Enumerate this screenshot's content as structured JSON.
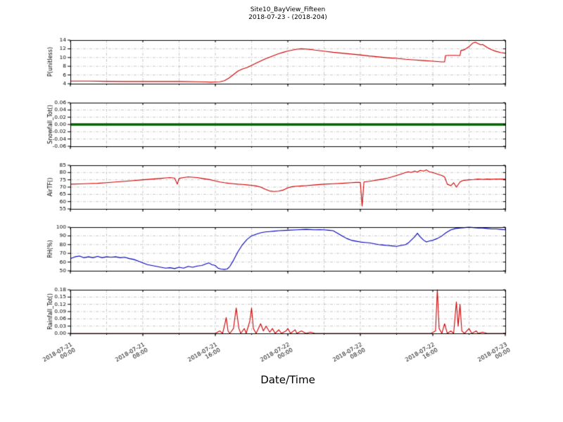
{
  "figure": {
    "title_line1": "Site10_BayView_Fifteen",
    "title_line2": "2018-07-23 - (2018-204)",
    "xlabel": "Date/Time",
    "background": "#ffffff",
    "grid_color": "#b0b0b0"
  },
  "x_axis": {
    "xlim": [
      0,
      48
    ],
    "minor_grid_hours": 4,
    "major_ticks": [
      0,
      8,
      16,
      24,
      32,
      40,
      48
    ],
    "tick_labels": [
      {
        "date": "2018-07-21",
        "time": "00:00"
      },
      {
        "date": "2018-07-21",
        "time": "08:00"
      },
      {
        "date": "2018-07-21",
        "time": "16:00"
      },
      {
        "date": "2018-07-22",
        "time": "00:00"
      },
      {
        "date": "2018-07-22",
        "time": "08:00"
      },
      {
        "date": "2018-07-22",
        "time": "16:00"
      },
      {
        "date": "2018-07-23",
        "time": "00:00"
      }
    ]
  },
  "chart_data": [
    {
      "type": "line",
      "title": "",
      "ylabel": "P(unitless)",
      "ylim": [
        4,
        14
      ],
      "yticks": [
        4,
        6,
        8,
        10,
        12,
        14
      ],
      "ytick_labels": [
        "4",
        "6",
        "8",
        "10",
        "12",
        "14"
      ],
      "color": "#cc0000",
      "line_width": 1.1,
      "grid": true,
      "points": [
        [
          0,
          4.6
        ],
        [
          2,
          4.6
        ],
        [
          4,
          4.55
        ],
        [
          6,
          4.5
        ],
        [
          8,
          4.5
        ],
        [
          10,
          4.5
        ],
        [
          12,
          4.5
        ],
        [
          14,
          4.45
        ],
        [
          15,
          4.4
        ],
        [
          15.5,
          4.35
        ],
        [
          16,
          4.4
        ],
        [
          16.5,
          4.45
        ],
        [
          17,
          4.7
        ],
        [
          17.5,
          5.3
        ],
        [
          18,
          6.1
        ],
        [
          18.5,
          6.9
        ],
        [
          19,
          7.4
        ],
        [
          19.5,
          7.7
        ],
        [
          20,
          8.2
        ],
        [
          20.5,
          8.7
        ],
        [
          21,
          9.2
        ],
        [
          21.5,
          9.7
        ],
        [
          22,
          10.1
        ],
        [
          22.5,
          10.5
        ],
        [
          23,
          10.9
        ],
        [
          23.5,
          11.2
        ],
        [
          24,
          11.5
        ],
        [
          24.5,
          11.7
        ],
        [
          25,
          11.9
        ],
        [
          25.5,
          12.0
        ],
        [
          26,
          11.95
        ],
        [
          26.5,
          11.85
        ],
        [
          27,
          11.7
        ],
        [
          28,
          11.45
        ],
        [
          29,
          11.2
        ],
        [
          30,
          11.0
        ],
        [
          31,
          10.8
        ],
        [
          32,
          10.6
        ],
        [
          33,
          10.35
        ],
        [
          34,
          10.15
        ],
        [
          35,
          9.95
        ],
        [
          36,
          9.8
        ],
        [
          37,
          9.6
        ],
        [
          38,
          9.45
        ],
        [
          39,
          9.3
        ],
        [
          40,
          9.15
        ],
        [
          41,
          9.0
        ],
        [
          41.3,
          9.0
        ],
        [
          41.4,
          10.45
        ],
        [
          42,
          10.5
        ],
        [
          42.5,
          10.5
        ],
        [
          43,
          10.45
        ],
        [
          43.1,
          11.6
        ],
        [
          43.5,
          11.8
        ],
        [
          44,
          12.5
        ],
        [
          44.4,
          13.3
        ],
        [
          44.7,
          13.5
        ],
        [
          45,
          13.2
        ],
        [
          45.3,
          12.9
        ],
        [
          45.5,
          13.0
        ],
        [
          46,
          12.3
        ],
        [
          46.5,
          11.8
        ],
        [
          47,
          11.4
        ],
        [
          47.5,
          11.15
        ],
        [
          48,
          11.0
        ]
      ]
    },
    {
      "type": "line",
      "title": "",
      "ylabel": "Snowfall_Tot()",
      "ylim": [
        -0.06,
        0.06
      ],
      "yticks": [
        -0.06,
        -0.04,
        -0.02,
        0,
        0.02,
        0.04,
        0.06
      ],
      "ytick_labels": [
        "-0.06",
        "-0.04",
        "-0.02",
        "0.00",
        "0.02",
        "0.04",
        "0.06"
      ],
      "color": "#006400",
      "line_width": 3.5,
      "grid": true,
      "points": [
        [
          0,
          0
        ],
        [
          48,
          0
        ]
      ]
    },
    {
      "type": "line",
      "title": "",
      "ylabel": "AirTF()",
      "ylim": [
        55,
        85
      ],
      "yticks": [
        55,
        60,
        65,
        70,
        75,
        80,
        85
      ],
      "ytick_labels": [
        "55",
        "60",
        "65",
        "70",
        "75",
        "80",
        "85"
      ],
      "color": "#cc0000",
      "line_width": 1.1,
      "grid": true,
      "points": [
        [
          0,
          72
        ],
        [
          1,
          72.2
        ],
        [
          2,
          72.4
        ],
        [
          3,
          72.6
        ],
        [
          4,
          73
        ],
        [
          5,
          73.5
        ],
        [
          6,
          74
        ],
        [
          7,
          74.5
        ],
        [
          8,
          75
        ],
        [
          9,
          75.5
        ],
        [
          10,
          76
        ],
        [
          10.5,
          76.3
        ],
        [
          11,
          76.5
        ],
        [
          11.5,
          76.2
        ],
        [
          11.8,
          72
        ],
        [
          12,
          76
        ],
        [
          12.5,
          76.5
        ],
        [
          13,
          77
        ],
        [
          13.5,
          76.8
        ],
        [
          14,
          76.5
        ],
        [
          14.5,
          76
        ],
        [
          15,
          75.5
        ],
        [
          15.5,
          75
        ],
        [
          16,
          74.2
        ],
        [
          16.5,
          73.5
        ],
        [
          17,
          73
        ],
        [
          17.5,
          72.6
        ],
        [
          18,
          72.3
        ],
        [
          18.5,
          72
        ],
        [
          19,
          71.8
        ],
        [
          19.5,
          71.5
        ],
        [
          20,
          71.2
        ],
        [
          20.5,
          70.8
        ],
        [
          21,
          70
        ],
        [
          21.5,
          68.5
        ],
        [
          22,
          67.3
        ],
        [
          22.5,
          67
        ],
        [
          23,
          67.2
        ],
        [
          23.5,
          68
        ],
        [
          24,
          69.5
        ],
        [
          24.5,
          70.3
        ],
        [
          25,
          70.6
        ],
        [
          25.5,
          70.8
        ],
        [
          26,
          71
        ],
        [
          27,
          71.5
        ],
        [
          28,
          72
        ],
        [
          29,
          72.3
        ],
        [
          30,
          72.6
        ],
        [
          31,
          73
        ],
        [
          31.5,
          73.2
        ],
        [
          32,
          73.3
        ],
        [
          32.2,
          57
        ],
        [
          32.4,
          73.5
        ],
        [
          33,
          74
        ],
        [
          33.5,
          74.5
        ],
        [
          34,
          75
        ],
        [
          34.5,
          75.5
        ],
        [
          35,
          76.2
        ],
        [
          35.5,
          77
        ],
        [
          36,
          78
        ],
        [
          36.5,
          79
        ],
        [
          37,
          80
        ],
        [
          37.3,
          80.5
        ],
        [
          37.6,
          80
        ],
        [
          38,
          81
        ],
        [
          38.3,
          80.3
        ],
        [
          38.6,
          81.5
        ],
        [
          39,
          81
        ],
        [
          39.3,
          81.8
        ],
        [
          39.6,
          80.5
        ],
        [
          40,
          80
        ],
        [
          40.5,
          79
        ],
        [
          41,
          78
        ],
        [
          41.3,
          77
        ],
        [
          41.6,
          72
        ],
        [
          42,
          71
        ],
        [
          42.3,
          73
        ],
        [
          42.6,
          70
        ],
        [
          43,
          73.5
        ],
        [
          43.3,
          74.5
        ],
        [
          44,
          75
        ],
        [
          44.5,
          75.2
        ],
        [
          45,
          75.5
        ],
        [
          45.5,
          75.3
        ],
        [
          46,
          75.5
        ],
        [
          46.5,
          75.4
        ],
        [
          47,
          75.6
        ],
        [
          47.5,
          75.5
        ],
        [
          48,
          75.5
        ]
      ]
    },
    {
      "type": "line",
      "title": "",
      "ylabel": "RH(%)",
      "ylim": [
        50,
        100
      ],
      "yticks": [
        50,
        60,
        70,
        80,
        90,
        100
      ],
      "ytick_labels": [
        "50",
        "60",
        "70",
        "80",
        "90",
        "100"
      ],
      "color": "#0000bb",
      "line_width": 1.1,
      "grid": true,
      "points": [
        [
          0,
          64
        ],
        [
          0.5,
          66
        ],
        [
          1,
          67
        ],
        [
          1.5,
          65
        ],
        [
          2,
          66
        ],
        [
          2.5,
          65
        ],
        [
          3,
          66.5
        ],
        [
          3.5,
          65
        ],
        [
          4,
          66
        ],
        [
          4.5,
          65.5
        ],
        [
          5,
          66
        ],
        [
          5.5,
          65
        ],
        [
          6,
          65.5
        ],
        [
          6.5,
          64
        ],
        [
          7,
          63
        ],
        [
          7.5,
          61
        ],
        [
          8,
          59
        ],
        [
          8.5,
          57
        ],
        [
          9,
          56
        ],
        [
          9.5,
          55
        ],
        [
          10,
          54
        ],
        [
          10.5,
          53
        ],
        [
          11,
          53.5
        ],
        [
          11.5,
          52.5
        ],
        [
          12,
          54
        ],
        [
          12.5,
          53
        ],
        [
          13,
          55
        ],
        [
          13.5,
          54
        ],
        [
          14,
          55.5
        ],
        [
          14.5,
          56
        ],
        [
          15,
          58
        ],
        [
          15.3,
          59
        ],
        [
          15.6,
          57
        ],
        [
          16,
          56
        ],
        [
          16.3,
          53
        ],
        [
          16.6,
          52
        ],
        [
          17,
          51.5
        ],
        [
          17.3,
          52
        ],
        [
          17.6,
          55
        ],
        [
          18,
          62
        ],
        [
          18.5,
          72
        ],
        [
          19,
          80
        ],
        [
          19.5,
          86
        ],
        [
          20,
          90
        ],
        [
          20.5,
          92
        ],
        [
          21,
          93.5
        ],
        [
          21.5,
          94.5
        ],
        [
          22,
          95
        ],
        [
          22.5,
          95.5
        ],
        [
          23,
          96
        ],
        [
          24,
          96.5
        ],
        [
          25,
          97
        ],
        [
          26,
          97.5
        ],
        [
          27,
          97
        ],
        [
          27.5,
          97.2
        ],
        [
          28,
          97
        ],
        [
          28.5,
          96.5
        ],
        [
          29,
          96
        ],
        [
          29.5,
          93
        ],
        [
          30,
          90
        ],
        [
          30.5,
          87
        ],
        [
          31,
          85
        ],
        [
          31.5,
          84
        ],
        [
          32,
          83
        ],
        [
          32.5,
          82.5
        ],
        [
          33,
          82
        ],
        [
          33.5,
          81
        ],
        [
          34,
          80
        ],
        [
          34.5,
          79.5
        ],
        [
          35,
          79
        ],
        [
          35.5,
          78.5
        ],
        [
          36,
          78
        ],
        [
          36.5,
          79
        ],
        [
          37,
          80
        ],
        [
          37.3,
          82
        ],
        [
          37.6,
          85
        ],
        [
          38,
          89
        ],
        [
          38.3,
          93
        ],
        [
          38.6,
          89
        ],
        [
          39,
          85
        ],
        [
          39.3,
          83
        ],
        [
          39.6,
          84
        ],
        [
          40,
          85
        ],
        [
          40.5,
          87
        ],
        [
          41,
          90
        ],
        [
          41.5,
          94
        ],
        [
          42,
          97
        ],
        [
          42.5,
          98.5
        ],
        [
          43,
          99
        ],
        [
          43.5,
          99.5
        ],
        [
          44,
          100
        ],
        [
          44.5,
          99.5
        ],
        [
          45,
          99
        ],
        [
          45.5,
          99
        ],
        [
          46,
          98.5
        ],
        [
          46.5,
          98
        ],
        [
          47,
          98
        ],
        [
          47.5,
          97.5
        ],
        [
          48,
          97
        ]
      ]
    },
    {
      "type": "line",
      "title": "",
      "ylabel": "Rainfall_Tot()",
      "ylim": [
        0,
        0.18
      ],
      "yticks": [
        0,
        0.03,
        0.06,
        0.09,
        0.12,
        0.15,
        0.18
      ],
      "ytick_labels": [
        "0.00",
        "0.03",
        "0.06",
        "0.09",
        "0.12",
        "0.15",
        "0.18"
      ],
      "color": "#cc0000",
      "line_width": 1.1,
      "grid": true,
      "points": [
        [
          0,
          0
        ],
        [
          4,
          0
        ],
        [
          8,
          0
        ],
        [
          12,
          0
        ],
        [
          16,
          0
        ],
        [
          16.5,
          0.01
        ],
        [
          16.8,
          0
        ],
        [
          17,
          0.03
        ],
        [
          17.2,
          0.065
        ],
        [
          17.4,
          0.01
        ],
        [
          17.6,
          0
        ],
        [
          18,
          0.02
        ],
        [
          18.3,
          0.105
        ],
        [
          18.6,
          0.02
        ],
        [
          18.8,
          0
        ],
        [
          19.2,
          0.02
        ],
        [
          19.4,
          0
        ],
        [
          19.8,
          0.05
        ],
        [
          20,
          0.105
        ],
        [
          20.2,
          0.02
        ],
        [
          20.5,
          0
        ],
        [
          21,
          0.04
        ],
        [
          21.3,
          0.01
        ],
        [
          21.6,
          0.03
        ],
        [
          22,
          0.005
        ],
        [
          22.3,
          0.02
        ],
        [
          22.6,
          0
        ],
        [
          23,
          0.015
        ],
        [
          23.3,
          0
        ],
        [
          23.8,
          0.01
        ],
        [
          24,
          0.02
        ],
        [
          24.3,
          0
        ],
        [
          24.8,
          0.015
        ],
        [
          25,
          0
        ],
        [
          25.5,
          0.01
        ],
        [
          26,
          0
        ],
        [
          26.5,
          0.005
        ],
        [
          27,
          0
        ],
        [
          28,
          0
        ],
        [
          30,
          0
        ],
        [
          32,
          0
        ],
        [
          34,
          0
        ],
        [
          36,
          0
        ],
        [
          38,
          0
        ],
        [
          39.8,
          0
        ],
        [
          40.3,
          0.01
        ],
        [
          40.5,
          0.18
        ],
        [
          40.7,
          0.02
        ],
        [
          41,
          0
        ],
        [
          41.3,
          0.04
        ],
        [
          41.6,
          0
        ],
        [
          42,
          0.01
        ],
        [
          42.3,
          0
        ],
        [
          42.6,
          0.13
        ],
        [
          42.8,
          0.03
        ],
        [
          43,
          0.12
        ],
        [
          43.2,
          0.01
        ],
        [
          43.5,
          0
        ],
        [
          44,
          0.02
        ],
        [
          44.3,
          0
        ],
        [
          44.8,
          0.01
        ],
        [
          45,
          0
        ],
        [
          45.5,
          0.005
        ],
        [
          46,
          0
        ],
        [
          48,
          0
        ]
      ]
    }
  ]
}
